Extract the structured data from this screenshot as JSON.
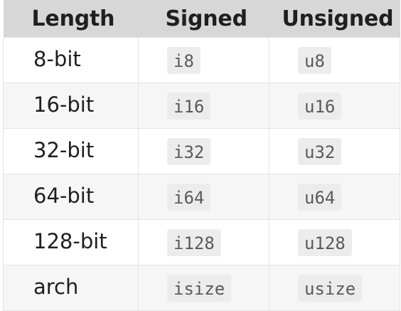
{
  "table": {
    "headers": {
      "length": "Length",
      "signed": "Signed",
      "unsigned": "Unsigned"
    },
    "rows": [
      {
        "length": "8-bit",
        "signed": "i8",
        "unsigned": "u8"
      },
      {
        "length": "16-bit",
        "signed": "i16",
        "unsigned": "u16"
      },
      {
        "length": "32-bit",
        "signed": "i32",
        "unsigned": "u32"
      },
      {
        "length": "64-bit",
        "signed": "i64",
        "unsigned": "u64"
      },
      {
        "length": "128-bit",
        "signed": "i128",
        "unsigned": "u128"
      },
      {
        "length": "arch",
        "signed": "isize",
        "unsigned": "usize"
      }
    ]
  }
}
